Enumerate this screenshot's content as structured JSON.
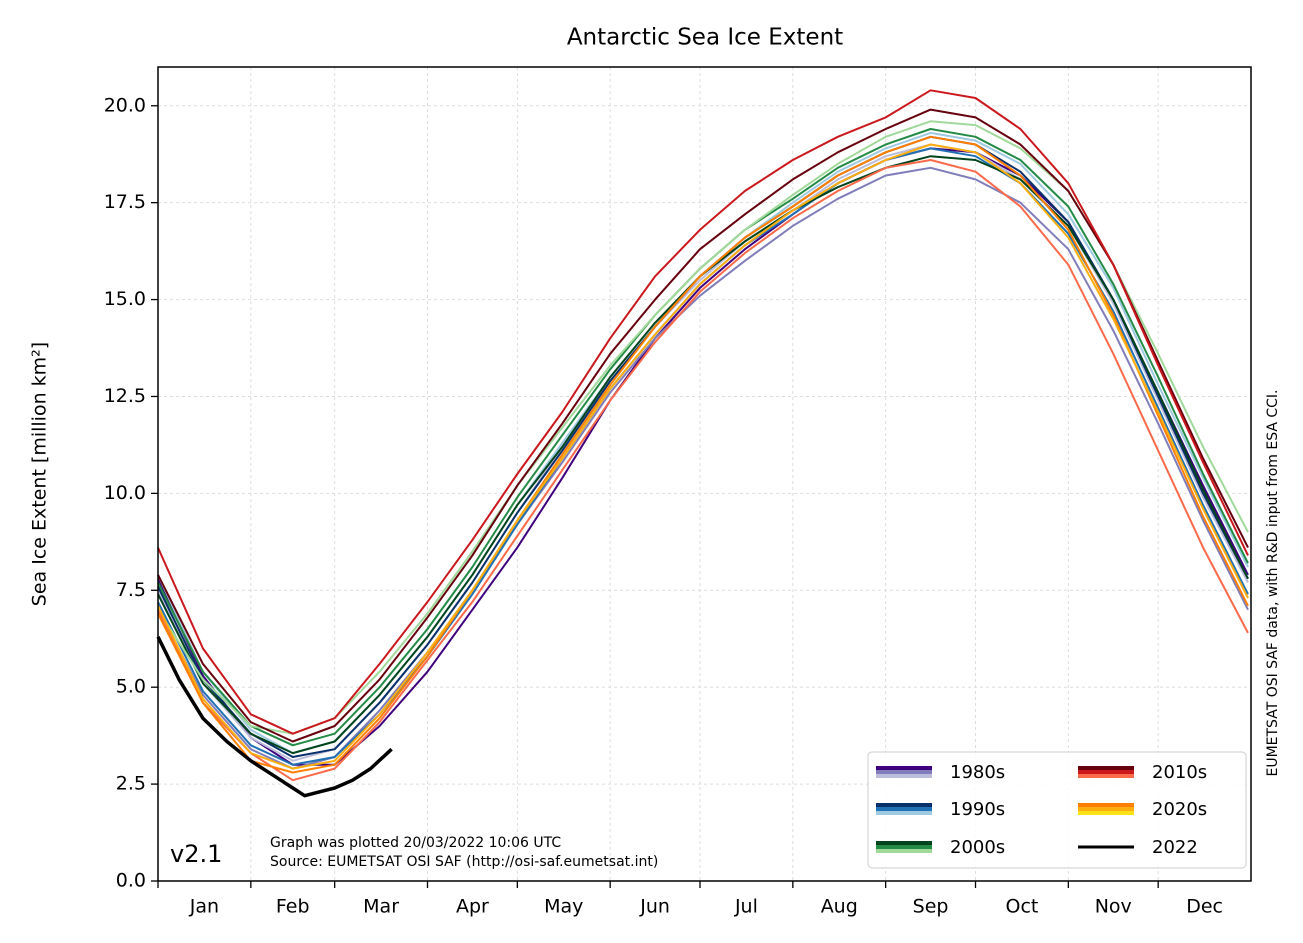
{
  "chart_data": {
    "type": "line",
    "title": "Antarctic Sea Ice Extent",
    "ylabel": "Sea Ice Extent [million km²]",
    "version": "v2.1",
    "notes": [
      "Graph was plotted 20/03/2022 10:06 UTC",
      "Source: EUMETSAT OSI SAF (http://osi-saf.eumetsat.int)"
    ],
    "credit": "EUMETSAT OSI SAF data, with R&D input from ESA CCI.",
    "categories": [
      "Jan",
      "Feb",
      "Mar",
      "Apr",
      "May",
      "Jun",
      "Jul",
      "Aug",
      "Sep",
      "Oct",
      "Nov",
      "Dec"
    ],
    "xlim": [
      1,
      366
    ],
    "xticks": [
      1,
      32,
      60,
      91,
      121,
      152,
      182,
      213,
      244,
      274,
      305,
      335
    ],
    "ylim": [
      0,
      21
    ],
    "yticks": [
      {
        "value": 0,
        "label": "0.0"
      },
      2.5,
      {
        "value": 5,
        "label": "5.0"
      },
      7.5,
      {
        "value": 10,
        "label": "10.0"
      },
      12.5,
      {
        "value": 15,
        "label": "15.0"
      },
      17.5,
      {
        "value": 20,
        "label": "20.0"
      }
    ],
    "grid": true,
    "legend": "lower right",
    "x": [
      1,
      16,
      32,
      46,
      60,
      75,
      91,
      106,
      121,
      136,
      152,
      167,
      182,
      197,
      213,
      228,
      244,
      259,
      274,
      289,
      305,
      320,
      335,
      350,
      365
    ],
    "series": [
      {
        "name": "1980s",
        "colors": [
          "#3f007d",
          "#807dba",
          "#bcbddc"
        ],
        "values": [
          [
            7.8,
            5.3,
            3.7,
            3.0,
            3.0,
            4.0,
            5.4,
            7.0,
            8.6,
            10.4,
            12.4,
            14.0,
            15.3,
            16.3,
            17.2,
            18.0,
            18.6,
            18.9,
            18.8,
            18.2,
            17.0,
            15.0,
            12.6,
            10.2,
            7.9
          ],
          [
            7.0,
            4.8,
            3.4,
            2.9,
            3.2,
            4.4,
            5.9,
            7.5,
            9.2,
            10.8,
            12.6,
            14.0,
            15.1,
            16.0,
            16.9,
            17.6,
            18.2,
            18.4,
            18.1,
            17.5,
            16.3,
            14.2,
            11.8,
            9.3,
            7.0
          ],
          [
            7.5,
            5.1,
            3.7,
            3.1,
            3.4,
            4.6,
            6.1,
            7.7,
            9.5,
            11.2,
            12.9,
            14.3,
            15.5,
            16.5,
            17.3,
            18.1,
            18.7,
            19.0,
            18.8,
            18.1,
            16.9,
            14.9,
            12.4,
            9.9,
            7.7
          ]
        ]
      },
      {
        "name": "1990s",
        "colors": [
          "#08306b",
          "#2171b5",
          "#9ecae1"
        ],
        "values": [
          [
            7.6,
            5.2,
            3.8,
            3.2,
            3.4,
            4.6,
            6.1,
            7.7,
            9.5,
            11.1,
            12.9,
            14.3,
            15.6,
            16.6,
            17.4,
            18.2,
            18.8,
            19.2,
            19.0,
            18.3,
            17.0,
            15.0,
            12.5,
            10.0,
            7.8
          ],
          [
            7.2,
            4.9,
            3.5,
            3.0,
            3.2,
            4.3,
            5.8,
            7.4,
            9.2,
            10.9,
            12.7,
            14.1,
            15.4,
            16.4,
            17.2,
            18.0,
            18.6,
            18.9,
            18.7,
            18.0,
            16.7,
            14.7,
            12.2,
            9.7,
            7.4
          ],
          [
            7.9,
            5.4,
            3.9,
            3.3,
            3.6,
            4.8,
            6.3,
            7.9,
            9.7,
            11.3,
            13.0,
            14.4,
            15.6,
            16.6,
            17.5,
            18.3,
            18.9,
            19.3,
            19.1,
            18.5,
            17.2,
            15.3,
            12.8,
            10.4,
            8.1
          ]
        ]
      },
      {
        "name": "2000s",
        "colors": [
          "#00441b",
          "#238b45",
          "#a1d99b"
        ],
        "values": [
          [
            7.4,
            5.1,
            3.8,
            3.3,
            3.6,
            4.8,
            6.3,
            7.9,
            9.7,
            11.2,
            13.0,
            14.4,
            15.6,
            16.5,
            17.3,
            17.9,
            18.4,
            18.7,
            18.6,
            18.1,
            16.9,
            15.0,
            12.6,
            10.1,
            7.8
          ],
          [
            7.7,
            5.4,
            4.0,
            3.5,
            3.8,
            5.0,
            6.5,
            8.1,
            9.9,
            11.5,
            13.2,
            14.6,
            15.8,
            16.8,
            17.6,
            18.4,
            19.0,
            19.4,
            19.2,
            18.6,
            17.4,
            15.4,
            13.0,
            10.5,
            8.2
          ],
          [
            7.0,
            5.2,
            4.0,
            3.8,
            4.2,
            5.4,
            6.9,
            8.5,
            10.2,
            11.7,
            13.3,
            14.6,
            15.8,
            16.8,
            17.7,
            18.5,
            19.2,
            19.6,
            19.5,
            18.9,
            17.8,
            15.9,
            13.6,
            11.2,
            9.0
          ]
        ]
      },
      {
        "name": "2010s",
        "colors": [
          "#67000d",
          "#cb181d",
          "#fb6a4a"
        ],
        "values": [
          [
            7.9,
            5.6,
            4.1,
            3.6,
            4.0,
            5.2,
            6.8,
            8.4,
            10.2,
            11.8,
            13.6,
            15.0,
            16.3,
            17.2,
            18.1,
            18.8,
            19.4,
            19.9,
            19.7,
            19.0,
            17.8,
            15.9,
            13.4,
            10.9,
            8.6
          ],
          [
            8.6,
            6.0,
            4.3,
            3.8,
            4.2,
            5.6,
            7.2,
            8.8,
            10.5,
            12.1,
            14.0,
            15.6,
            16.8,
            17.8,
            18.6,
            19.2,
            19.7,
            20.4,
            20.2,
            19.4,
            18.0,
            15.9,
            13.3,
            10.8,
            8.4
          ],
          [
            7.0,
            4.6,
            3.3,
            2.6,
            2.9,
            4.1,
            5.7,
            7.2,
            8.9,
            10.6,
            12.4,
            13.9,
            15.2,
            16.2,
            17.1,
            17.8,
            18.4,
            18.6,
            18.3,
            17.4,
            15.9,
            13.6,
            11.1,
            8.6,
            6.4
          ]
        ]
      },
      {
        "name": "2020s",
        "colors": [
          "#ff7f00",
          "#fdae0f",
          "#ffe119"
        ],
        "values": [
          [
            6.9,
            4.6,
            3.1,
            2.8,
            3.0,
            4.2,
            5.8,
            7.5,
            9.3,
            11.0,
            12.8,
            14.3,
            15.6,
            16.6,
            17.4,
            18.2,
            18.8,
            19.2,
            19.0,
            18.2,
            16.8,
            14.6,
            12.0,
            9.4,
            7.1
          ],
          [
            7.1,
            4.7,
            3.3,
            2.9,
            3.1,
            4.3,
            5.9,
            7.5,
            9.3,
            10.9,
            12.7,
            14.1,
            15.4,
            16.4,
            17.3,
            18.0,
            18.6,
            19.0,
            18.8,
            18.0,
            16.6,
            14.5,
            12.1,
            9.6,
            7.3
          ]
        ]
      },
      {
        "name": "2022",
        "colors": [
          "#000000"
        ],
        "x": [
          1,
          8,
          16,
          24,
          32,
          40,
          46,
          50,
          55,
          60,
          66,
          72,
          79
        ],
        "values": [
          [
            6.3,
            5.2,
            4.2,
            3.6,
            3.1,
            2.7,
            2.4,
            2.2,
            2.3,
            2.4,
            2.6,
            2.9,
            3.4
          ]
        ]
      }
    ]
  }
}
